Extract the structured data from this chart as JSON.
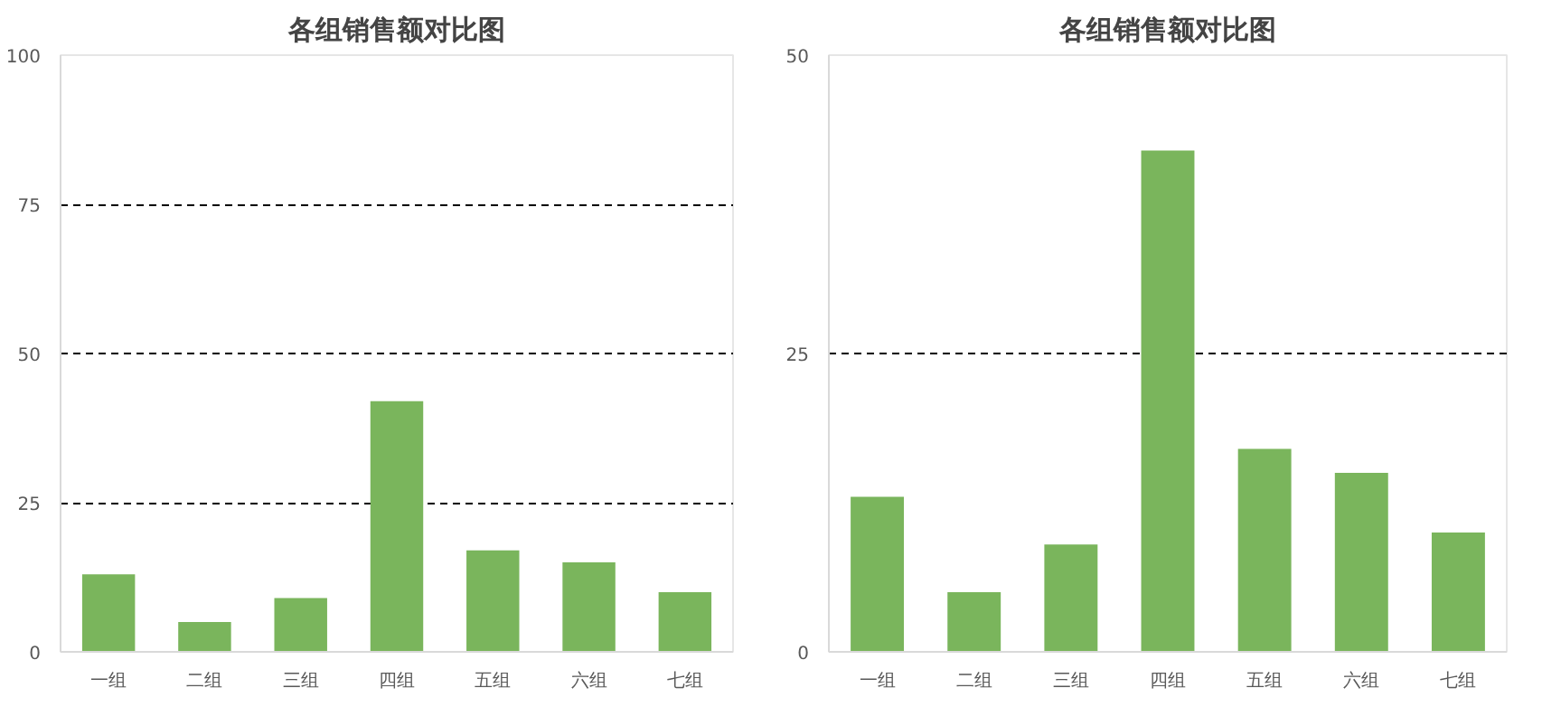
{
  "chart_data": [
    {
      "type": "bar",
      "title": "各组销售额对比图",
      "categories": [
        "一组",
        "二组",
        "三组",
        "四组",
        "五组",
        "六组",
        "七组"
      ],
      "values": [
        13,
        5,
        9,
        42,
        17,
        15,
        10
      ],
      "color": "#7ab55c",
      "ylim": [
        0,
        100
      ],
      "yticks": [
        0,
        25,
        50,
        75,
        100
      ],
      "grid": "y"
    },
    {
      "type": "bar",
      "title": "各组销售额对比图",
      "categories": [
        "一组",
        "二组",
        "三组",
        "四组",
        "五组",
        "六组",
        "七组"
      ],
      "values": [
        13,
        5,
        9,
        42,
        17,
        15,
        10
      ],
      "color": "#7ab55c",
      "ylim": [
        0,
        50
      ],
      "yticks": [
        0,
        25,
        50
      ],
      "grid": "y"
    }
  ]
}
